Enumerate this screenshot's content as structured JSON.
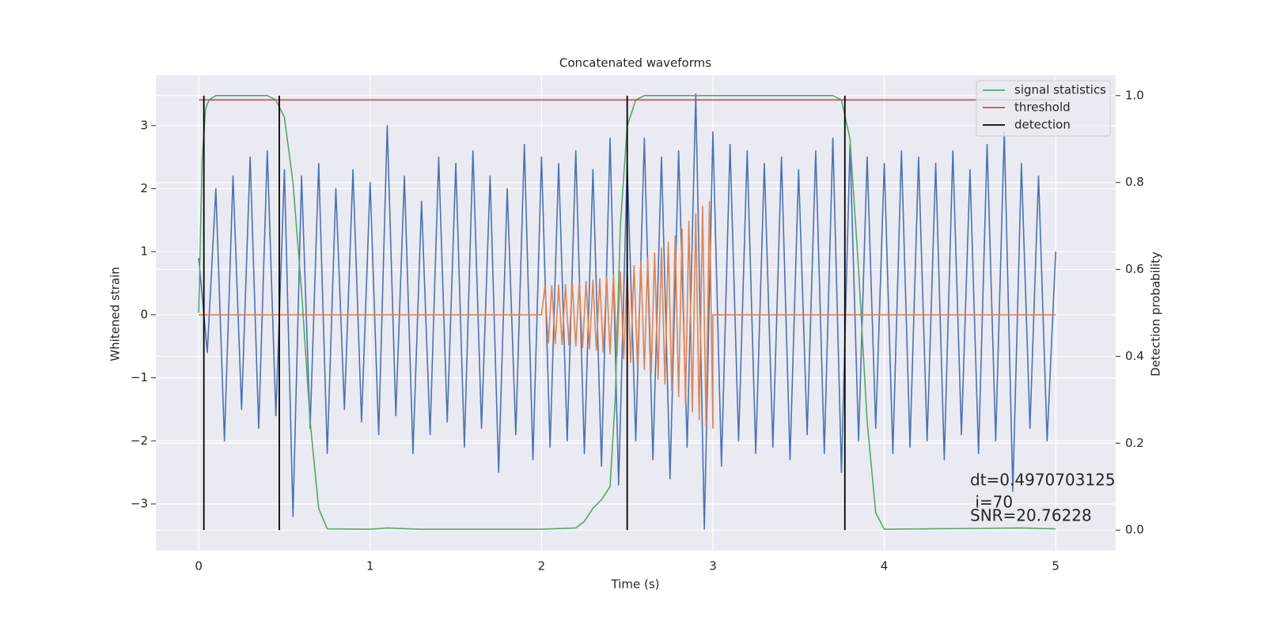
{
  "chart_data": {
    "type": "line",
    "title": "Concatenated waveforms",
    "xlabel": "Time (s)",
    "ylabel": "Whitened strain",
    "y2label": "Detection probability",
    "xlim": [
      -0.25,
      5.35
    ],
    "ylim": [
      -3.74,
      3.8
    ],
    "y2lim": [
      -0.047,
      1.047
    ],
    "xticks": [
      0,
      1,
      2,
      3,
      4,
      5
    ],
    "yticks": [
      {
        "value": -3,
        "label": "−3"
      },
      {
        "value": -2,
        "label": "−2"
      },
      {
        "value": -1,
        "label": "−1"
      },
      0,
      1,
      2,
      3
    ],
    "y2ticks": [
      {
        "value": 0,
        "label": "0.0"
      },
      0.2,
      0.4,
      0.6,
      0.8,
      {
        "value": 1,
        "label": "1.0"
      }
    ],
    "grid": true,
    "legend": "upper right",
    "background": "#eaeaf2",
    "series": [
      {
        "color": "#4c72b0",
        "axis": "y",
        "x": [
          0,
          0.05,
          0.1,
          0.15,
          0.2,
          0.25,
          0.3,
          0.35,
          0.4,
          0.45,
          0.5,
          0.55,
          0.6,
          0.65,
          0.7,
          0.75,
          0.8,
          0.85,
          0.9,
          0.95,
          1,
          1.05,
          1.1,
          1.15,
          1.2,
          1.25,
          1.3,
          1.35,
          1.4,
          1.45,
          1.5,
          1.55,
          1.6,
          1.65,
          1.7,
          1.75,
          1.8,
          1.85,
          1.9,
          1.95,
          2,
          2.05,
          2.1,
          2.15,
          2.2,
          2.25,
          2.3,
          2.35,
          2.4,
          2.45,
          2.5,
          2.55,
          2.6,
          2.65,
          2.7,
          2.75,
          2.8,
          2.85,
          2.9,
          2.95,
          3,
          3.05,
          3.1,
          3.15,
          3.2,
          3.25,
          3.3,
          3.35,
          3.4,
          3.45,
          3.5,
          3.55,
          3.6,
          3.65,
          3.7,
          3.75,
          3.8,
          3.85,
          3.9,
          3.95,
          4,
          4.05,
          4.1,
          4.15,
          4.2,
          4.25,
          4.3,
          4.35,
          4.4,
          4.45,
          4.5,
          4.55,
          4.6,
          4.65,
          4.7,
          4.75,
          4.8,
          4.85,
          4.9,
          4.95,
          5
        ],
        "values": [
          0.9,
          -0.6,
          2.0,
          -2.0,
          2.2,
          -1.5,
          2.5,
          -1.8,
          2.6,
          -1.6,
          2.3,
          -3.2,
          2.2,
          -1.8,
          2.4,
          -2.2,
          2.0,
          -1.5,
          2.3,
          -1.7,
          2.1,
          -1.9,
          3.0,
          -1.6,
          2.2,
          -2.2,
          1.8,
          -1.9,
          2.5,
          -1.7,
          2.4,
          -2.1,
          2.6,
          -1.8,
          2.2,
          -2.5,
          2.0,
          -1.9,
          2.7,
          -2.3,
          2.5,
          -2.1,
          2.4,
          -2.0,
          2.6,
          -2.2,
          2.3,
          -2.4,
          2.8,
          -2.7,
          2.4,
          -2.0,
          2.8,
          -2.3,
          2.5,
          -2.6,
          2.6,
          -2.1,
          3.5,
          -3.4,
          2.9,
          -2.4,
          2.7,
          -2.0,
          2.6,
          -2.2,
          2.4,
          -2.1,
          2.5,
          -2.3,
          2.3,
          -1.9,
          2.6,
          -2.2,
          2.8,
          -2.5,
          2.7,
          -2.0,
          2.5,
          -1.8,
          2.4,
          -2.2,
          2.6,
          -2.1,
          2.5,
          -2.0,
          2.4,
          -2.3,
          2.6,
          -1.9,
          2.3,
          -2.2,
          2.7,
          -2.0,
          2.9,
          -2.8,
          2.4,
          -1.8,
          2.2,
          -2.0,
          1.0
        ]
      },
      {
        "color": "#dd8452",
        "axis": "y",
        "x": [
          0,
          2,
          2.02,
          2.04,
          2.06,
          2.08,
          2.1,
          2.12,
          2.14,
          2.16,
          2.18,
          2.2,
          2.22,
          2.24,
          2.26,
          2.28,
          2.3,
          2.32,
          2.34,
          2.36,
          2.38,
          2.4,
          2.42,
          2.44,
          2.46,
          2.48,
          2.5,
          2.52,
          2.54,
          2.56,
          2.58,
          2.6,
          2.62,
          2.64,
          2.66,
          2.68,
          2.7,
          2.72,
          2.74,
          2.76,
          2.78,
          2.8,
          2.82,
          2.84,
          2.86,
          2.88,
          2.9,
          2.92,
          2.94,
          2.96,
          2.98,
          3,
          3,
          5
        ],
        "values": [
          0,
          0,
          0.45,
          -0.45,
          0.46,
          -0.46,
          0.47,
          -0.47,
          0.48,
          -0.48,
          0.49,
          -0.5,
          0.51,
          -0.52,
          0.53,
          -0.54,
          0.55,
          -0.56,
          0.57,
          -0.59,
          0.6,
          -0.62,
          0.64,
          -0.66,
          0.68,
          -0.7,
          0.72,
          -0.75,
          0.78,
          -0.81,
          0.84,
          -0.87,
          0.9,
          -0.94,
          0.98,
          -1.02,
          1.06,
          -1.1,
          1.15,
          -1.2,
          1.25,
          -1.3,
          1.36,
          -1.42,
          1.48,
          -1.54,
          1.6,
          -1.66,
          1.72,
          -1.76,
          1.8,
          -1.8,
          0,
          0
        ]
      },
      {
        "name": "signal statistics",
        "color": "#55a868",
        "axis": "y2",
        "x": [
          0,
          0.02,
          0.04,
          0.06,
          0.1,
          0.4,
          0.45,
          0.5,
          0.55,
          0.6,
          0.65,
          0.7,
          0.75,
          1,
          1.1,
          1.3,
          2,
          2.2,
          2.25,
          2.3,
          2.35,
          2.4,
          2.43,
          2.46,
          2.5,
          2.55,
          2.6,
          3.7,
          3.75,
          3.8,
          3.85,
          3.9,
          3.95,
          4,
          4.8,
          5
        ],
        "values": [
          0.5,
          0.85,
          0.97,
          0.99,
          1,
          1,
          0.99,
          0.95,
          0.8,
          0.55,
          0.25,
          0.05,
          0.003,
          0.002,
          0.005,
          0.002,
          0.002,
          0.005,
          0.02,
          0.05,
          0.07,
          0.1,
          0.3,
          0.7,
          0.93,
          0.99,
          1,
          1,
          0.99,
          0.9,
          0.6,
          0.25,
          0.04,
          0.002,
          0.005,
          0.003
        ]
      },
      {
        "name": "threshold",
        "color": "#c44e52",
        "axis": "y2",
        "x": [
          0,
          5
        ],
        "values": [
          0.99,
          0.99
        ]
      }
    ],
    "detections": {
      "name": "detection",
      "color": "#000000",
      "x": [
        0.03,
        0.47,
        2.5,
        3.77
      ],
      "ymin": 0,
      "ymax": 1
    },
    "annotation": [
      "dt=0.4970703125",
      " i=70",
      "SNR=20.76228"
    ]
  }
}
